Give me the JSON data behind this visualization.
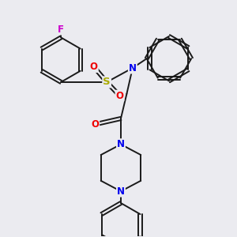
{
  "bg_color": "#ebebf0",
  "bond_color": "#1a1a1a",
  "bond_width": 1.4,
  "atom_colors": {
    "F": "#cc00cc",
    "S": "#aaaa00",
    "O": "#ee0000",
    "N": "#0000ee",
    "C": "#1a1a1a"
  },
  "font_size": 8.5,
  "fig_size": [
    3.0,
    3.0
  ],
  "dpi": 100,
  "xlim": [
    0,
    10
  ],
  "ylim": [
    0,
    10
  ]
}
